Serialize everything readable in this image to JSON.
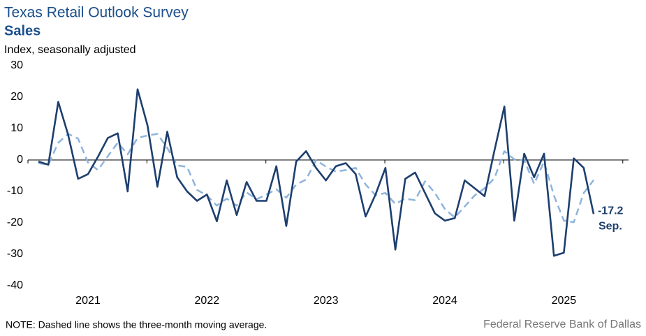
{
  "chart_data": {
    "type": "line",
    "title": "Texas Retail Outlook Survey",
    "subtitle": "Sales",
    "y_label": "Index, seasonally adjusted",
    "note": "NOTE: Dashed line shows the three-month moving average.",
    "source": "Federal Reserve Bank of Dallas",
    "annotation": "Sep.",
    "categories": [
      null,
      null,
      null,
      null,
      null,
      "2021",
      null,
      null,
      null,
      null,
      null,
      null,
      null,
      null,
      null,
      null,
      null,
      "2022",
      null,
      null,
      null,
      null,
      null,
      null,
      null,
      null,
      null,
      null,
      null,
      "2023",
      null,
      null,
      null,
      null,
      null,
      null,
      null,
      null,
      null,
      null,
      null,
      "2024",
      null,
      null,
      null,
      null,
      null,
      null,
      null,
      null,
      null,
      null,
      null,
      "2025",
      null,
      null,
      null
    ],
    "series": [
      {
        "color": "#1d3f6e",
        "style": "solid",
        "label_last": true,
        "values": [
          -0.5,
          -1.5,
          18.5,
          8,
          -6,
          -4.5,
          1,
          7,
          8.5,
          -10,
          22.5,
          11,
          -8.5,
          9,
          -5.5,
          -10,
          -13,
          -11,
          -19.5,
          -6.5,
          -17.5,
          -7,
          -13,
          -13,
          -2,
          -21,
          -0.5,
          2.8,
          -2.5,
          -6.5,
          -2,
          -1,
          -4.5,
          -18,
          -11,
          -2.5,
          -28.5,
          -6,
          -4,
          -10.5,
          -17,
          -19.3,
          -18.5,
          -6.5,
          -9,
          -11.5,
          3,
          17,
          -19.3,
          2,
          -5.5,
          2,
          -30.5,
          -29.5,
          0.5,
          -2.5,
          -17.2
        ]
      },
      {
        "color": "#8fb4dc",
        "style": "dashed",
        "values": [
          -1,
          -1.5,
          5.5,
          8.3,
          6.8,
          -0.8,
          -3.2,
          1.2,
          5.5,
          1.8,
          7,
          7.8,
          8.3,
          3.8,
          -1.7,
          -2.2,
          -9.5,
          -11.3,
          -14.5,
          -12.3,
          -14.5,
          -10.3,
          -12.5,
          -11,
          -9.3,
          -12,
          -7.8,
          -6.2,
          -0.1,
          -2.1,
          -3.7,
          -3.2,
          -2.5,
          -7.8,
          -11.2,
          -10.5,
          -14,
          -12.3,
          -12.8,
          -6.8,
          -10.5,
          -15.6,
          -18.3,
          -14.8,
          -11.3,
          -9,
          -5.8,
          2.8,
          0.2,
          -0.1,
          -7.6,
          -0.5,
          -11.3,
          -19.3,
          -19.8,
          -10.5,
          -6.4
        ]
      }
    ],
    "ylim": [
      -40,
      30
    ],
    "yticks": [
      -40,
      -30,
      -20,
      -10,
      0,
      10,
      20,
      30
    ],
    "grid": false
  }
}
